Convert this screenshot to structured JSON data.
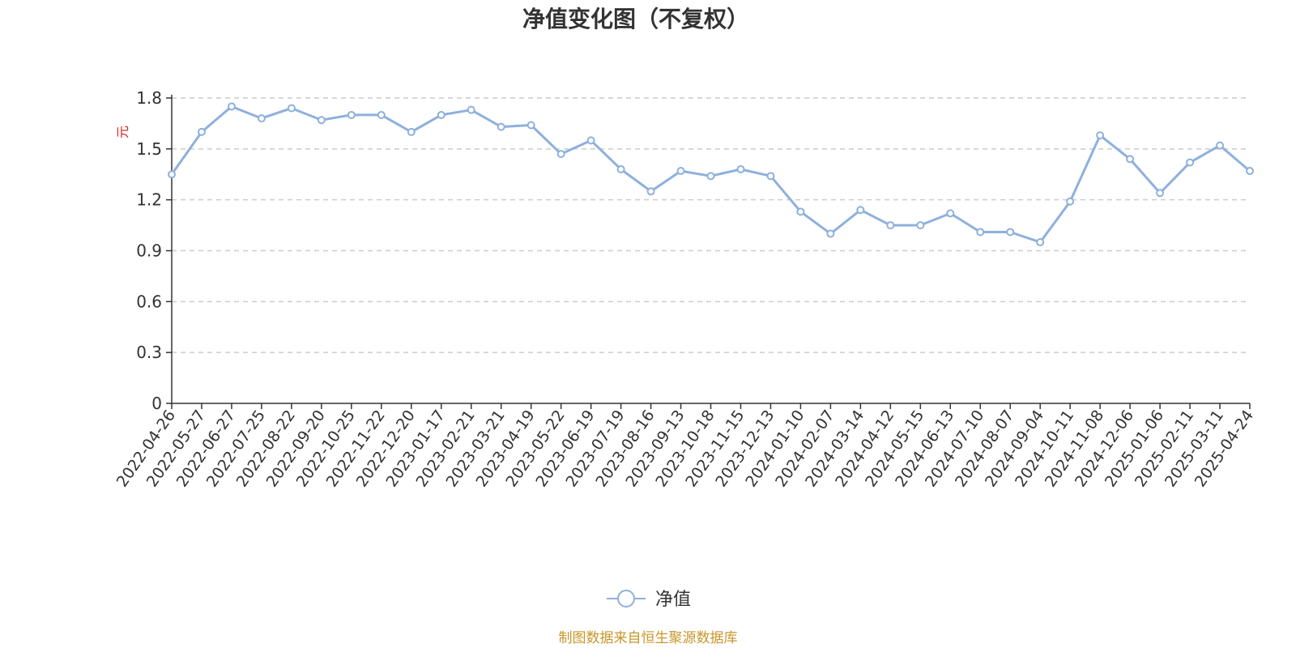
{
  "colors": {
    "line": "#8eb0de",
    "grid": "#cccccc",
    "axis": "#333333",
    "unit": "#e02020",
    "source": "#c8962a"
  },
  "source_note": "制图数据来自恒生聚源数据库",
  "chart_data": {
    "type": "line",
    "title": "净值变化图（不复权）",
    "ylabel": "元",
    "xlabel": "",
    "ylim": [
      0,
      1.8
    ],
    "yticks": [
      "0",
      "0.3",
      "0.6",
      "0.9",
      "1.2",
      "1.5",
      "1.8"
    ],
    "grid": true,
    "legend_position": "bottom-center",
    "marker": "hollow-circle",
    "categories": [
      "2022-04-26",
      "2022-05-27",
      "2022-06-27",
      "2022-07-25",
      "2022-08-22",
      "2022-09-20",
      "2022-10-25",
      "2022-11-22",
      "2022-12-20",
      "2023-01-17",
      "2023-02-21",
      "2023-03-21",
      "2023-04-19",
      "2023-05-22",
      "2023-06-19",
      "2023-07-19",
      "2023-08-16",
      "2023-09-13",
      "2023-10-18",
      "2023-11-15",
      "2023-12-13",
      "2024-01-10",
      "2024-02-07",
      "2024-03-14",
      "2024-04-12",
      "2024-05-15",
      "2024-06-13",
      "2024-07-10",
      "2024-08-07",
      "2024-09-04",
      "2024-10-11",
      "2024-11-08",
      "2024-12-06",
      "2025-01-06",
      "2025-02-11",
      "2025-03-11",
      "2025-04-24"
    ],
    "series": [
      {
        "name": "净值",
        "values": [
          1.35,
          1.6,
          1.75,
          1.68,
          1.74,
          1.67,
          1.7,
          1.7,
          1.6,
          1.7,
          1.73,
          1.63,
          1.64,
          1.47,
          1.55,
          1.38,
          1.25,
          1.37,
          1.34,
          1.38,
          1.34,
          1.13,
          1.0,
          1.14,
          1.05,
          1.05,
          1.12,
          1.01,
          1.01,
          0.95,
          1.19,
          1.58,
          1.44,
          1.24,
          1.42,
          1.52,
          1.37
        ]
      }
    ]
  }
}
